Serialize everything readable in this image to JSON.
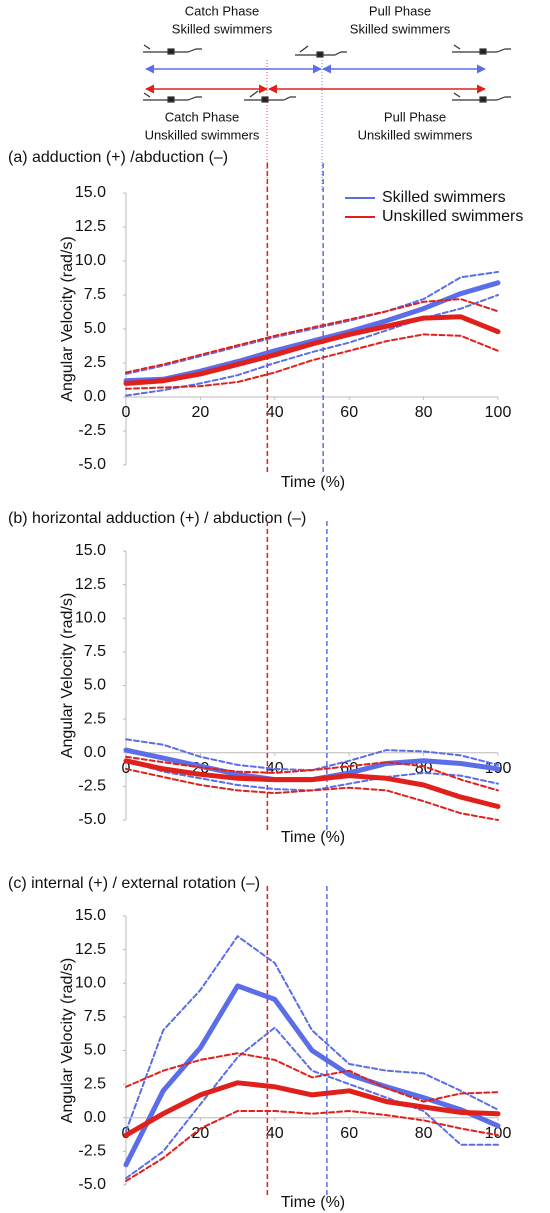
{
  "phase_diagram": {
    "skilled_catch": [
      "Catch Phase",
      "Skilled swimmers"
    ],
    "skilled_pull": [
      "Pull Phase",
      "Skilled swimmers"
    ],
    "unskilled_catch": [
      "Catch Phase",
      "Unskilled swimmers"
    ],
    "unskilled_pull": [
      "Pull Phase",
      "Unskilled swimmers"
    ]
  },
  "chart_data": [
    {
      "type": "line",
      "title": "(a) adduction (+) /abduction (–)",
      "x_label": "Time (%)",
      "y_label": "Angular Velocity (rad/s)",
      "x": [
        0,
        10,
        20,
        30,
        40,
        50,
        60,
        70,
        80,
        90,
        100
      ],
      "xlim": [
        0,
        100
      ],
      "xticks": [
        0,
        20,
        40,
        60,
        80,
        100
      ],
      "ylim": [
        -5,
        15
      ],
      "yticks": [
        {
          "value": 15,
          "label": "15.0"
        },
        12.5,
        {
          "value": 10,
          "label": "10.0"
        },
        7.5,
        {
          "value": 5,
          "label": "5.0"
        },
        2.5,
        {
          "value": 0,
          "label": "0.0"
        },
        -2.5,
        {
          "value": -5,
          "label": "-5.0"
        }
      ],
      "vlines": [
        {
          "x": 38,
          "color": "#e0201b"
        },
        {
          "x": 53,
          "color": "#5b6ee8"
        }
      ],
      "legend": "upper right",
      "series": [
        {
          "name": "Skilled swimmers",
          "color": "#5b6ee8",
          "style": "solid",
          "values": [
            1.2,
            1.3,
            1.9,
            2.6,
            3.4,
            4.1,
            4.8,
            5.6,
            6.5,
            7.6,
            8.4
          ]
        },
        {
          "color": "#5b6ee8",
          "style": "dashed",
          "values": [
            1.7,
            2.3,
            3.0,
            3.7,
            4.4,
            5.0,
            5.6,
            6.3,
            7.2,
            8.8,
            9.2
          ]
        },
        {
          "color": "#5b6ee8",
          "style": "dashed",
          "values": [
            0.1,
            0.5,
            1.0,
            1.6,
            2.5,
            3.3,
            4.0,
            4.9,
            5.8,
            6.5,
            7.5
          ]
        },
        {
          "name": "Unskilled swimmers",
          "color": "#e0201b",
          "style": "solid",
          "values": [
            1.0,
            1.2,
            1.7,
            2.4,
            3.1,
            3.9,
            4.6,
            5.2,
            5.8,
            5.9,
            4.8
          ]
        },
        {
          "color": "#e0201b",
          "style": "dashed",
          "values": [
            1.8,
            2.4,
            3.1,
            3.8,
            4.5,
            5.1,
            5.7,
            6.3,
            7.0,
            7.2,
            6.3
          ]
        },
        {
          "color": "#e0201b",
          "style": "dashed",
          "values": [
            0.6,
            0.7,
            0.8,
            1.1,
            1.8,
            2.7,
            3.4,
            4.1,
            4.6,
            4.5,
            3.4
          ]
        }
      ]
    },
    {
      "type": "line",
      "title": "(b) horizontal adduction (+) / abduction (–)",
      "x_label": "Time (%)",
      "y_label": "Angular Velocity (rad/s)",
      "x": [
        0,
        10,
        20,
        30,
        40,
        50,
        60,
        70,
        80,
        90,
        100
      ],
      "xlim": [
        0,
        100
      ],
      "xticks": [
        0,
        20,
        40,
        60,
        80,
        100
      ],
      "ylim": [
        -5,
        15
      ],
      "yticks": [
        {
          "value": 15,
          "label": "15.0"
        },
        12.5,
        {
          "value": 10,
          "label": "10.0"
        },
        7.5,
        {
          "value": 5,
          "label": "5.0"
        },
        2.5,
        {
          "value": 0,
          "label": "0.0"
        },
        -2.5,
        {
          "value": -5,
          "label": "-5.0"
        }
      ],
      "vlines": [
        {
          "x": 38,
          "color": "#e0201b"
        },
        {
          "x": 54,
          "color": "#5b6ee8"
        }
      ],
      "series": [
        {
          "color": "#5b6ee8",
          "style": "solid",
          "values": [
            0.2,
            -0.4,
            -1.0,
            -1.6,
            -2.0,
            -2.0,
            -1.5,
            -0.8,
            -0.6,
            -0.8,
            -1.2
          ]
        },
        {
          "color": "#5b6ee8",
          "style": "dashed",
          "values": [
            1.0,
            0.6,
            -0.3,
            -0.9,
            -1.2,
            -1.3,
            -0.6,
            0.2,
            0.1,
            -0.2,
            -0.9
          ]
        },
        {
          "color": "#5b6ee8",
          "style": "dashed",
          "values": [
            -0.6,
            -1.4,
            -1.9,
            -2.4,
            -2.7,
            -2.8,
            -2.3,
            -1.8,
            -1.5,
            -1.7,
            -2.3
          ]
        },
        {
          "color": "#e0201b",
          "style": "solid",
          "values": [
            -0.6,
            -1.2,
            -1.6,
            -1.9,
            -2.0,
            -2.0,
            -1.7,
            -1.9,
            -2.4,
            -3.3,
            -4.0
          ]
        },
        {
          "color": "#e0201b",
          "style": "dashed",
          "values": [
            -0.3,
            -0.7,
            -1.1,
            -1.4,
            -1.5,
            -1.3,
            -1.0,
            -0.7,
            -1.0,
            -2.0,
            -2.8
          ]
        },
        {
          "color": "#e0201b",
          "style": "dashed",
          "values": [
            -1.2,
            -1.8,
            -2.4,
            -2.8,
            -3.0,
            -2.8,
            -2.6,
            -2.8,
            -3.6,
            -4.5,
            -5.0
          ]
        }
      ]
    },
    {
      "type": "line",
      "title": "(c) internal (+) / external rotation (–)",
      "x_label": "Time (%)",
      "y_label": "Angular Velocity (rad/s)",
      "x": [
        0,
        10,
        20,
        30,
        40,
        50,
        60,
        70,
        80,
        90,
        100
      ],
      "xlim": [
        0,
        100
      ],
      "xticks": [
        0,
        20,
        40,
        60,
        80,
        100
      ],
      "ylim": [
        -5,
        15
      ],
      "yticks": [
        {
          "value": 15,
          "label": "15.0"
        },
        12.5,
        {
          "value": 10,
          "label": "10.0"
        },
        7.5,
        {
          "value": 5,
          "label": "5.0"
        },
        2.5,
        {
          "value": 0,
          "label": "0.0"
        },
        -2.5,
        {
          "value": -5,
          "label": "-5.0"
        }
      ],
      "vlines": [
        {
          "x": 38,
          "color": "#e0201b"
        },
        {
          "x": 54,
          "color": "#5b6ee8"
        }
      ],
      "series": [
        {
          "color": "#5b6ee8",
          "style": "solid",
          "values": [
            -3.5,
            2.0,
            5.2,
            9.8,
            8.8,
            5.0,
            3.2,
            2.3,
            1.5,
            0.6,
            -0.6
          ]
        },
        {
          "color": "#5b6ee8",
          "style": "dashed",
          "values": [
            -1.0,
            6.5,
            9.5,
            13.5,
            11.5,
            6.5,
            4.0,
            3.5,
            3.3,
            2.0,
            0.6
          ]
        },
        {
          "color": "#5b6ee8",
          "style": "dashed",
          "values": [
            -4.5,
            -2.5,
            1.0,
            4.5,
            6.7,
            3.5,
            2.5,
            1.5,
            0.5,
            -2.0,
            -2.0
          ]
        },
        {
          "color": "#e0201b",
          "style": "solid",
          "values": [
            -1.3,
            0.3,
            1.7,
            2.6,
            2.3,
            1.7,
            2.0,
            1.2,
            0.8,
            0.4,
            0.3
          ]
        },
        {
          "color": "#e0201b",
          "style": "dashed",
          "values": [
            2.3,
            3.5,
            4.3,
            4.8,
            4.3,
            3.0,
            3.5,
            2.2,
            1.2,
            1.8,
            1.9
          ]
        },
        {
          "color": "#e0201b",
          "style": "dashed",
          "values": [
            -4.7,
            -3.0,
            -0.8,
            0.5,
            0.5,
            0.3,
            0.5,
            0.2,
            -0.2,
            -0.8,
            -1.3
          ]
        }
      ]
    }
  ]
}
